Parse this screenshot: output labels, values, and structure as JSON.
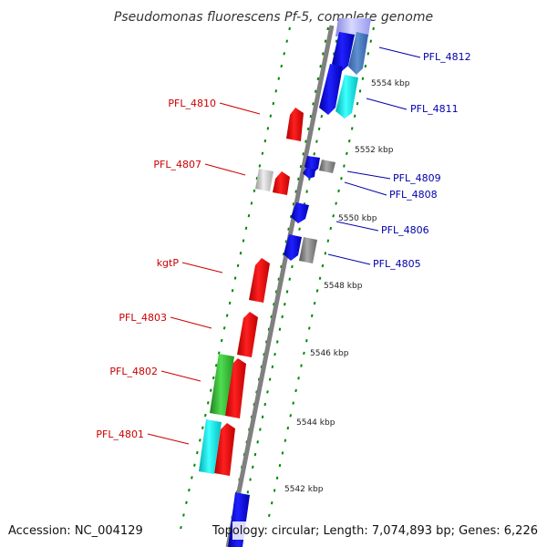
{
  "title": "Pseudomonas fluorescens Pf-5, complete genome",
  "footer": {
    "accession": "Accession: NC_004129",
    "topology": "Topology: circular; Length: 7,074,893 bp; Genes: 6,226"
  },
  "colors": {
    "backbone": "#808080",
    "red": "#ff0000",
    "blue": "#0000ff",
    "cyan": "#00ffff",
    "green": "#33cc33",
    "gray": "#888888",
    "lightgray": "#cccccc",
    "lightblue": "#9999ff",
    "label_left": "#cc0000",
    "label_right": "#0000aa",
    "guide": "#008800"
  },
  "scale_labels": [
    "5554 kbp",
    "5552 kbp",
    "5550 kbp",
    "5548 kbp",
    "5546 kbp",
    "5544 kbp",
    "5542 kbp"
  ],
  "genes_left": [
    {
      "label": "PFL_4810"
    },
    {
      "label": "PFL_4807"
    },
    {
      "label": "kgtP"
    },
    {
      "label": "PFL_4803"
    },
    {
      "label": "PFL_4802"
    },
    {
      "label": "PFL_4801"
    }
  ],
  "genes_right": [
    {
      "label": "PFL_4812"
    },
    {
      "label": "PFL_4811"
    },
    {
      "label": "PFL_4809"
    },
    {
      "label": "PFL_4808"
    },
    {
      "label": "PFL_4806"
    },
    {
      "label": "PFL_4805"
    }
  ]
}
